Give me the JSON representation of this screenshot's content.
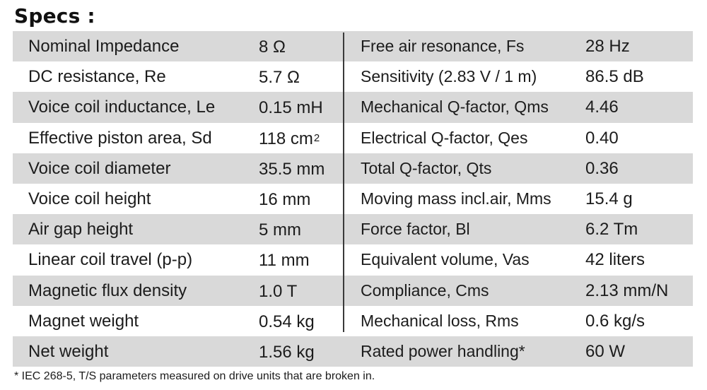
{
  "title": "Specs :",
  "rows": [
    {
      "left_name": "Nominal Impedance",
      "left_value": "8 Ω",
      "left_sup": "",
      "right_name": "Free air resonance, Fs",
      "right_value": "28 Hz"
    },
    {
      "left_name": "DC resistance, Re",
      "left_value": "5.7 Ω",
      "left_sup": "",
      "right_name": "Sensitivity (2.83 V / 1 m)",
      "right_value": "86.5 dB"
    },
    {
      "left_name": "Voice coil inductance, Le",
      "left_value": "0.15 mH",
      "left_sup": "",
      "right_name": "Mechanical Q-factor, Qms",
      "right_value": "4.46"
    },
    {
      "left_name": "Effective piston area, Sd",
      "left_value": "118 cm",
      "left_sup": "2",
      "right_name": "Electrical Q-factor, Qes",
      "right_value": "0.40"
    },
    {
      "left_name": "Voice coil diameter",
      "left_value": "35.5 mm",
      "left_sup": "",
      "right_name": "Total Q-factor, Qts",
      "right_value": "0.36"
    },
    {
      "left_name": "Voice coil height",
      "left_value": "16 mm",
      "left_sup": "",
      "right_name": "Moving mass incl.air, Mms",
      "right_value": "15.4 g"
    },
    {
      "left_name": "Air gap height",
      "left_value": "5 mm",
      "left_sup": "",
      "right_name": "Force factor, Bl",
      "right_value": "6.2 Tm"
    },
    {
      "left_name": "Linear coil travel (p-p)",
      "left_value": "11 mm",
      "left_sup": "",
      "right_name": "Equivalent volume, Vas",
      "right_value": "42 liters"
    },
    {
      "left_name": "Magnetic flux density",
      "left_value": "1.0 T",
      "left_sup": "",
      "right_name": "Compliance, Cms",
      "right_value": "2.13 mm/N"
    },
    {
      "left_name": "Magnet weight",
      "left_value": "0.54 kg",
      "left_sup": "",
      "right_name": "Mechanical loss, Rms",
      "right_value": "0.6 kg/s"
    },
    {
      "left_name": "Net weight",
      "left_value": "1.56 kg",
      "left_sup": "",
      "right_name": "Rated power handling*",
      "right_value": "60 W"
    }
  ],
  "footnote": "* IEC 268-5, T/S parameters measured on drive units that are broken in.",
  "colors": {
    "row_shade": "#d9d9d9",
    "text": "#1c1c1c"
  }
}
